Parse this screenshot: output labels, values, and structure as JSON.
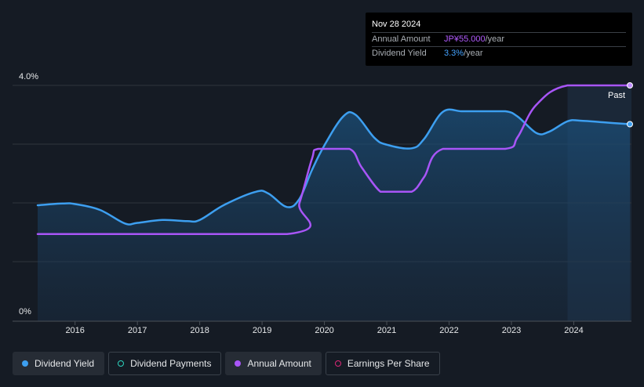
{
  "tooltip": {
    "date": "Nov 28 2024",
    "annual_amount_label": "Annual Amount",
    "annual_amount_value": "JP¥55.000",
    "annual_amount_unit": "/year",
    "dividend_yield_label": "Dividend Yield",
    "dividend_yield_value": "3.3%",
    "dividend_yield_unit": "/year"
  },
  "past_label": "Past",
  "legend": {
    "items": [
      {
        "label": "Dividend Yield",
        "color": "#3d9ff0",
        "marker": "filled",
        "active": true
      },
      {
        "label": "Dividend Payments",
        "color": "#2dd4bf",
        "marker": "hollow",
        "active": false
      },
      {
        "label": "Annual Amount",
        "color": "#a855f7",
        "marker": "filled",
        "active": true
      },
      {
        "label": "Earnings Per Share",
        "color": "#db2777",
        "marker": "hollow",
        "active": false
      }
    ]
  },
  "colors": {
    "background": "#151b24",
    "dividend_yield": "#3d9ff0",
    "annual_amount": "#a855f7",
    "grid": "#2f353d"
  },
  "chart_data": {
    "type": "line",
    "title": "",
    "xlabel": "",
    "ylabel": "",
    "ylim": [
      0,
      4.0
    ],
    "y_tick_labels": [
      "4.0%",
      "0%"
    ],
    "y_grid": [
      1.0,
      2.0,
      3.0,
      4.0
    ],
    "x_ticks": [
      2016,
      2017,
      2018,
      2019,
      2020,
      2021,
      2022,
      2023,
      2024
    ],
    "x_tick_labels": [
      "2016",
      "2017",
      "2018",
      "2019",
      "2020",
      "2021",
      "2022",
      "2023",
      "2024"
    ],
    "xlim": [
      2015.4,
      2024.9
    ],
    "past_region_start": 2023.9,
    "series": [
      {
        "name": "Dividend Yield",
        "unit": "%",
        "points": [
          [
            2015.4,
            1.96
          ],
          [
            2015.8,
            1.99
          ],
          [
            2016.0,
            1.98
          ],
          [
            2016.4,
            1.88
          ],
          [
            2016.8,
            1.65
          ],
          [
            2017.0,
            1.66
          ],
          [
            2017.4,
            1.71
          ],
          [
            2017.8,
            1.69
          ],
          [
            2018.0,
            1.71
          ],
          [
            2018.4,
            1.97
          ],
          [
            2018.9,
            2.19
          ],
          [
            2019.1,
            2.16
          ],
          [
            2019.4,
            1.93
          ],
          [
            2019.6,
            2.07
          ],
          [
            2019.8,
            2.56
          ],
          [
            2020.0,
            2.98
          ],
          [
            2020.3,
            3.47
          ],
          [
            2020.5,
            3.5
          ],
          [
            2020.8,
            3.11
          ],
          [
            2021.0,
            2.99
          ],
          [
            2021.4,
            2.93
          ],
          [
            2021.6,
            3.09
          ],
          [
            2021.9,
            3.55
          ],
          [
            2022.2,
            3.56
          ],
          [
            2022.5,
            3.56
          ],
          [
            2022.9,
            3.56
          ],
          [
            2023.1,
            3.47
          ],
          [
            2023.4,
            3.19
          ],
          [
            2023.6,
            3.21
          ],
          [
            2023.9,
            3.39
          ],
          [
            2024.1,
            3.4
          ],
          [
            2024.5,
            3.37
          ],
          [
            2024.9,
            3.34
          ]
        ]
      },
      {
        "name": "Annual Amount",
        "unit": "JP¥",
        "points": [
          [
            2015.4,
            1.47
          ],
          [
            2019.4,
            1.47
          ],
          [
            2019.6,
            2.0
          ],
          [
            2019.8,
            2.75
          ],
          [
            2019.9,
            2.92
          ],
          [
            2020.4,
            2.92
          ],
          [
            2020.6,
            2.6
          ],
          [
            2020.9,
            2.19
          ],
          [
            2021.1,
            2.19
          ],
          [
            2021.4,
            2.19
          ],
          [
            2021.6,
            2.44
          ],
          [
            2021.9,
            2.92
          ],
          [
            2022.9,
            2.92
          ],
          [
            2023.1,
            3.12
          ],
          [
            2023.4,
            3.67
          ],
          [
            2023.9,
            4.0
          ],
          [
            2024.9,
            4.0
          ]
        ]
      }
    ]
  }
}
